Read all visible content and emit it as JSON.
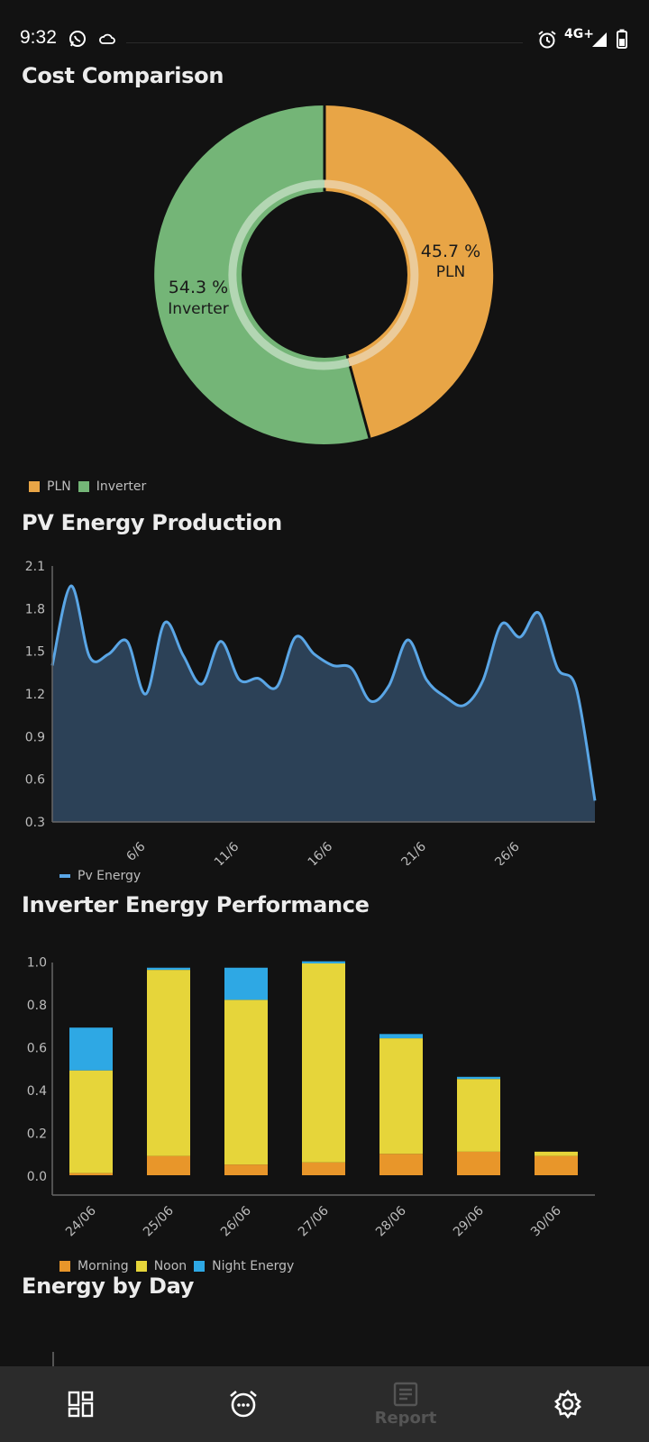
{
  "status_bar": {
    "time": "9:32",
    "network": "4G+",
    "icons": [
      "whatsapp-icon",
      "cloud-icon",
      "alarm-icon",
      "signal-icon",
      "battery-icon"
    ]
  },
  "sections": {
    "cost": "Cost Comparison",
    "pv": "PV Energy Production",
    "inverter": "Inverter Energy Performance",
    "energy_day": "Energy by Day"
  },
  "cost_chart": {
    "slices": [
      {
        "label": "PLN",
        "value_text": "45.7 %",
        "color": "#E8A546"
      },
      {
        "label": "Inverter",
        "value_text": "54.3 %",
        "color": "#74B577"
      }
    ]
  },
  "chart_data": [
    {
      "type": "pie",
      "title": "Cost Comparison",
      "labels": [
        "PLN",
        "Inverter"
      ],
      "values": [
        45.7,
        54.3
      ],
      "colors": [
        "#E8A546",
        "#74B577"
      ],
      "legend": "bottom-left"
    },
    {
      "type": "area",
      "title": "PV Energy Production",
      "x_tick_labels": [
        "6/6",
        "11/6",
        "16/6",
        "21/6",
        "26/6"
      ],
      "y_tick_labels": [
        "0.3",
        "0.6",
        "0.9",
        "1.2",
        "1.5",
        "1.8",
        "2.1"
      ],
      "ylim": [
        0.3,
        2.1
      ],
      "x": [
        1,
        2,
        3,
        4,
        5,
        6,
        7,
        8,
        9,
        10,
        11,
        12,
        13,
        14,
        15,
        16,
        17,
        18,
        19,
        20,
        21,
        22,
        23,
        24,
        25,
        26,
        27,
        28,
        29,
        30
      ],
      "series": [
        {
          "name": "Pv Energy",
          "color": "#5AA6E6",
          "values": [
            1.4,
            1.96,
            1.46,
            1.48,
            1.57,
            1.2,
            1.7,
            1.47,
            1.27,
            1.57,
            1.3,
            1.31,
            1.25,
            1.6,
            1.48,
            1.4,
            1.38,
            1.15,
            1.26,
            1.58,
            1.3,
            1.18,
            1.12,
            1.29,
            1.69,
            1.6,
            1.77,
            1.38,
            1.24,
            0.45
          ]
        }
      ],
      "legend": "bottom-left"
    },
    {
      "type": "bar",
      "stacked": true,
      "title": "Inverter Energy Performance",
      "categories": [
        "24/06",
        "25/06",
        "26/06",
        "27/06",
        "28/06",
        "29/06",
        "30/06"
      ],
      "y_tick_labels": [
        "0.0",
        "0.2",
        "0.4",
        "0.6",
        "0.8",
        "1.0"
      ],
      "ylim": [
        0,
        1.07
      ],
      "series": [
        {
          "name": "Morning",
          "color": "#E8962A",
          "values": [
            0.01,
            0.09,
            0.05,
            0.06,
            0.1,
            0.11,
            0.09
          ]
        },
        {
          "name": "Noon",
          "color": "#E6D53A",
          "values": [
            0.48,
            0.87,
            0.77,
            0.93,
            0.54,
            0.34,
            0.02
          ]
        },
        {
          "name": "Night  Energy",
          "color": "#2EA8E4",
          "values": [
            0.2,
            0.01,
            0.15,
            0.01,
            0.02,
            0.01,
            0.0
          ]
        }
      ],
      "legend": "bottom-left"
    }
  ],
  "nav": {
    "report_label": "Report",
    "icons": [
      "dashboard-icon",
      "alarm-icon",
      "report-icon",
      "settings-icon"
    ]
  }
}
